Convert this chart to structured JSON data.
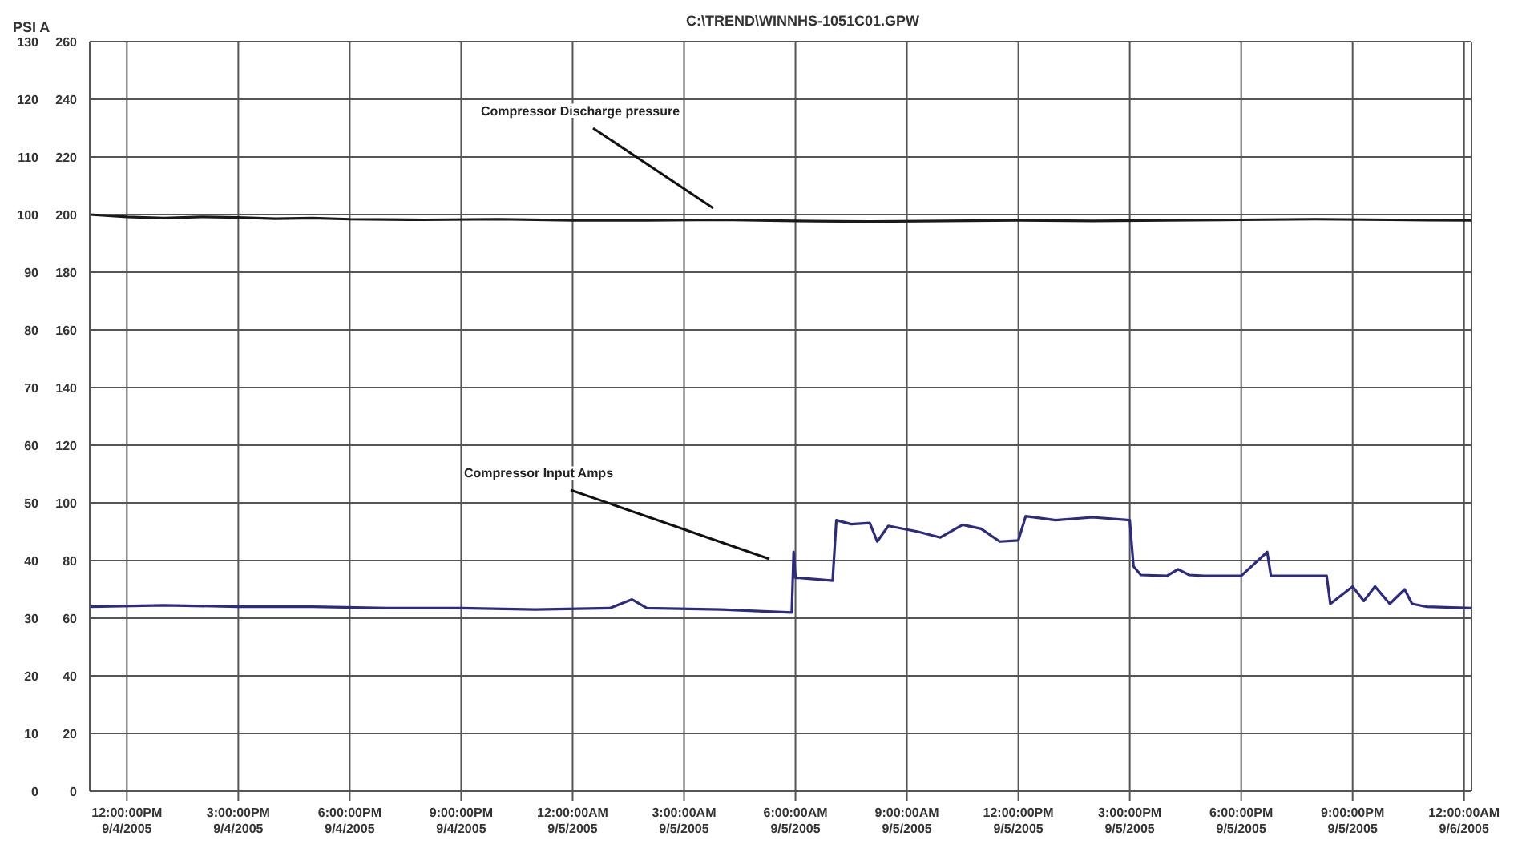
{
  "chart_data": {
    "type": "line",
    "title": "C:\\TREND\\WINNHS-1051C01.GPW",
    "ylabel": "PSI A",
    "xlim": [
      "2005-09-04T11:00",
      "2005-09-06T00:12"
    ],
    "xticks": [
      {
        "value": "2005-09-04T12:00",
        "label": "12:00:00PM\n9/4/2005"
      },
      {
        "value": "2005-09-04T15:00",
        "label": "3:00:00PM\n9/4/2005"
      },
      {
        "value": "2005-09-04T18:00",
        "label": "6:00:00PM\n9/4/2005"
      },
      {
        "value": "2005-09-04T21:00",
        "label": "9:00:00PM\n9/4/2005"
      },
      {
        "value": "2005-09-05T00:00",
        "label": "12:00:00AM\n9/5/2005"
      },
      {
        "value": "2005-09-05T03:00",
        "label": "3:00:00AM\n9/5/2005"
      },
      {
        "value": "2005-09-05T06:00",
        "label": "6:00:00AM\n9/5/2005"
      },
      {
        "value": "2005-09-05T09:00",
        "label": "9:00:00AM\n9/5/2005"
      },
      {
        "value": "2005-09-05T12:00",
        "label": "12:00:00PM\n9/5/2005"
      },
      {
        "value": "2005-09-05T15:00",
        "label": "3:00:00PM\n9/5/2005"
      },
      {
        "value": "2005-09-05T18:00",
        "label": "6:00:00PM\n9/5/2005"
      },
      {
        "value": "2005-09-05T21:00",
        "label": "9:00:00PM\n9/5/2005"
      },
      {
        "value": "2005-09-06T00:00",
        "label": "12:00:00AM\n9/6/2005"
      }
    ],
    "ylim": [
      0,
      130
    ],
    "yticks": [
      0,
      10,
      20,
      30,
      40,
      50,
      60,
      70,
      80,
      90,
      100,
      110,
      120,
      130
    ],
    "y2lim": [
      0,
      260
    ],
    "y2ticks": [
      0,
      20,
      40,
      60,
      80,
      100,
      120,
      140,
      160,
      180,
      200,
      220,
      240,
      260
    ],
    "grid": true,
    "marker": "none",
    "line_style": "solid",
    "annotations": [
      "Compressor Discharge pressure",
      "Compressor Input Amps"
    ],
    "series": [
      {
        "color": "#1a1a1a",
        "x": [
          "2005-09-04T11:00",
          "2005-09-04T12:00",
          "2005-09-04T13:00",
          "2005-09-04T14:00",
          "2005-09-04T15:00",
          "2005-09-04T16:00",
          "2005-09-04T17:00",
          "2005-09-04T18:00",
          "2005-09-04T20:00",
          "2005-09-04T22:00",
          "2005-09-05T00:00",
          "2005-09-05T02:00",
          "2005-09-05T04:00",
          "2005-09-05T06:00",
          "2005-09-05T08:00",
          "2005-09-05T10:00",
          "2005-09-05T12:00",
          "2005-09-05T14:00",
          "2005-09-05T16:00",
          "2005-09-05T18:00",
          "2005-09-05T20:00",
          "2005-09-05T22:00",
          "2005-09-06T00:12"
        ],
        "values": [
          100,
          99.6,
          99.4,
          99.6,
          99.5,
          99.3,
          99.4,
          99.2,
          99.1,
          99.2,
          99,
          99,
          99.1,
          98.9,
          98.8,
          98.9,
          99,
          98.9,
          99,
          99.1,
          99.2,
          99.1,
          99
        ]
      },
      {
        "color": "#2b2b80",
        "axis": "y2",
        "x": [
          "2005-09-04T11:00",
          "2005-09-04T13:00",
          "2005-09-04T15:00",
          "2005-09-04T17:00",
          "2005-09-04T19:00",
          "2005-09-04T21:00",
          "2005-09-04T23:00",
          "2005-09-05T01:00",
          "2005-09-05T01:36",
          "2005-09-05T02:00",
          "2005-09-05T04:00",
          "2005-09-05T05:54",
          "2005-09-05T05:57",
          "2005-09-05T06:00",
          "2005-09-05T06:06",
          "2005-09-05T07:00",
          "2005-09-05T07:06",
          "2005-09-05T07:30",
          "2005-09-05T08:00",
          "2005-09-05T08:12",
          "2005-09-05T08:30",
          "2005-09-05T09:18",
          "2005-09-05T09:54",
          "2005-09-05T10:30",
          "2005-09-05T11:00",
          "2005-09-05T11:30",
          "2005-09-05T12:00",
          "2005-09-05T12:12",
          "2005-09-05T13:00",
          "2005-09-05T14:00",
          "2005-09-05T15:00",
          "2005-09-05T15:06",
          "2005-09-05T15:18",
          "2005-09-05T16:00",
          "2005-09-05T16:18",
          "2005-09-05T16:36",
          "2005-09-05T17:00",
          "2005-09-05T18:00",
          "2005-09-05T18:42",
          "2005-09-05T18:48",
          "2005-09-05T19:00",
          "2005-09-05T20:18",
          "2005-09-05T20:24",
          "2005-09-05T21:00",
          "2005-09-05T21:18",
          "2005-09-05T21:36",
          "2005-09-05T22:00",
          "2005-09-05T22:24",
          "2005-09-05T22:36",
          "2005-09-05T23:00",
          "2005-09-06T00:12"
        ],
        "values": [
          64,
          64.5,
          64,
          64,
          63.5,
          63.5,
          63,
          63.5,
          66.5,
          63.5,
          63,
          62,
          83,
          74,
          74,
          73,
          94,
          92.6,
          93,
          86.6,
          92,
          90,
          88,
          92.4,
          91,
          86.6,
          87,
          95.4,
          94,
          95,
          94,
          78,
          75,
          74.7,
          77,
          75,
          74.7,
          74.7,
          83,
          74.7,
          74.7,
          74.7,
          65,
          71,
          66,
          71,
          65,
          70,
          65,
          64,
          63.5
        ]
      }
    ]
  }
}
